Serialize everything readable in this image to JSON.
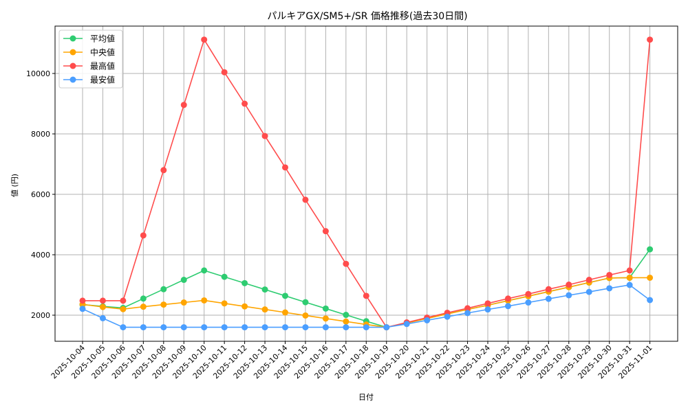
{
  "chart_data": {
    "type": "line",
    "title": "パルキアGX/SM5+/SR 価格推移(過去30日間)",
    "xlabel": "日付",
    "ylabel": "値 (円)",
    "ylim": [
      1100,
      11580
    ],
    "yticks": [
      2000,
      4000,
      6000,
      8000,
      10000
    ],
    "grid": true,
    "legend_position": "upper left",
    "categories": [
      "2025-10-04",
      "2025-10-05",
      "2025-10-06",
      "2025-10-07",
      "2025-10-08",
      "2025-10-09",
      "2025-10-10",
      "2025-10-11",
      "2025-10-12",
      "2025-10-13",
      "2025-10-14",
      "2025-10-15",
      "2025-10-16",
      "2025-10-17",
      "2025-10-18",
      "2025-10-19",
      "2025-10-20",
      "2025-10-21",
      "2025-10-22",
      "2025-10-23",
      "2025-10-24",
      "2025-10-25",
      "2025-10-26",
      "2025-10-27",
      "2025-10-28",
      "2025-10-29",
      "2025-10-30",
      "2025-10-31",
      "2025-11-01"
    ],
    "series": [
      {
        "name": "平均値",
        "color": "#2ecc71",
        "values": [
          2350,
          2290,
          2240,
          2550,
          2860,
          3170,
          3480,
          3270,
          3060,
          2850,
          2640,
          2430,
          2220,
          2010,
          1800,
          1600,
          1740,
          1890,
          2040,
          2190,
          2330,
          2480,
          2630,
          2780,
          2930,
          3080,
          3230,
          3240,
          4180
        ]
      },
      {
        "name": "中央値",
        "color": "#ffa500",
        "values": [
          2360,
          2270,
          2200,
          2280,
          2350,
          2420,
          2490,
          2390,
          2290,
          2190,
          2090,
          1990,
          1890,
          1790,
          1690,
          1600,
          1740,
          1890,
          2040,
          2190,
          2330,
          2480,
          2630,
          2780,
          2930,
          3080,
          3230,
          3240,
          3240
        ]
      },
      {
        "name": "最高値",
        "color": "#ff4c4c",
        "values": [
          2480,
          2480,
          2480,
          4640,
          6800,
          8960,
          11120,
          10040,
          9000,
          7930,
          6890,
          5820,
          4780,
          3700,
          2640,
          1600,
          1760,
          1920,
          2080,
          2230,
          2390,
          2550,
          2700,
          2860,
          3010,
          3170,
          3330,
          3480,
          11120
        ]
      },
      {
        "name": "最安値",
        "color": "#4a9eff",
        "values": [
          2210,
          1900,
          1600,
          1600,
          1600,
          1600,
          1600,
          1600,
          1600,
          1600,
          1600,
          1600,
          1600,
          1600,
          1600,
          1600,
          1710,
          1830,
          1950,
          2070,
          2190,
          2300,
          2420,
          2540,
          2660,
          2770,
          2890,
          3000,
          2500
        ]
      }
    ]
  }
}
